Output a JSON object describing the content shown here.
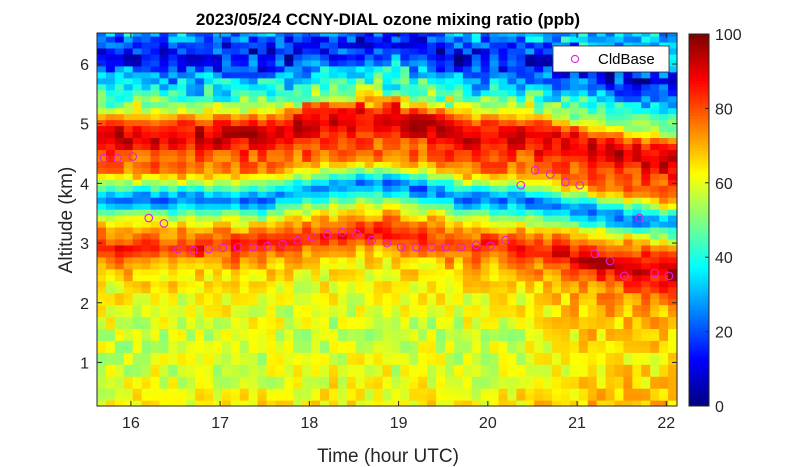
{
  "chart_data": {
    "type": "heatmap",
    "title": "2023/05/24 CCNY-DIAL ozone mixing ratio (ppb)",
    "xlabel": "Time (hour UTC)",
    "ylabel": "Altitude (km)",
    "xlim": [
      15.62,
      22.12
    ],
    "ylim": [
      0.27,
      6.52
    ],
    "xticks": [
      16,
      17,
      18,
      19,
      20,
      21,
      22
    ],
    "yticks": [
      1,
      2,
      3,
      4,
      5,
      6
    ],
    "colormap": "jet",
    "clim": [
      0,
      100
    ],
    "colorbar_ticks": [
      0,
      20,
      40,
      60,
      80,
      100
    ],
    "colors": {
      "marker": "#e020e0",
      "frame": "#262626"
    },
    "legend": {
      "label": "CldBase",
      "marker": "open-circle",
      "location": "top-right"
    },
    "ozone_profile": {
      "note_unused": "",
      "alt": [
        0.3,
        0.6,
        1.0,
        1.4,
        1.8,
        2.2,
        2.5,
        2.75,
        2.9,
        3.05,
        3.25,
        3.45,
        3.6,
        3.75,
        3.9,
        4.05,
        4.2,
        4.35,
        4.5,
        4.65,
        4.8,
        4.95,
        5.1,
        5.25,
        5.45,
        5.65,
        5.8,
        5.95,
        6.1,
        6.3,
        6.5
      ],
      "ozone": [
        63,
        60,
        58,
        57,
        60,
        62,
        67,
        75,
        85,
        80,
        70,
        52,
        35,
        22,
        40,
        62,
        75,
        78,
        80,
        88,
        92,
        88,
        75,
        55,
        45,
        35,
        28,
        18,
        12,
        18,
        30
      ]
    },
    "cloud_base": {
      "name": "CldBase",
      "x": [
        15.7,
        15.85,
        16.02,
        16.2,
        16.37,
        16.53,
        16.7,
        16.87,
        17.03,
        17.2,
        17.37,
        17.53,
        17.7,
        17.87,
        18.03,
        18.2,
        18.37,
        18.53,
        18.7,
        18.87,
        19.03,
        19.2,
        19.37,
        19.53,
        19.7,
        19.87,
        20.03,
        20.2,
        20.37,
        20.53,
        20.7,
        20.87,
        21.03,
        21.2,
        21.37,
        21.53,
        21.7,
        21.87,
        22.03
      ],
      "y": [
        4.42,
        4.42,
        4.45,
        3.42,
        3.33,
        2.9,
        2.88,
        2.9,
        2.92,
        2.93,
        2.93,
        2.95,
        2.98,
        3.05,
        3.1,
        3.15,
        3.18,
        3.15,
        3.05,
        3.0,
        2.93,
        2.93,
        2.93,
        2.93,
        2.93,
        2.97,
        2.95,
        3.05,
        3.97,
        4.22,
        4.15,
        4.02,
        3.97,
        2.82,
        2.7,
        2.45,
        3.42,
        2.5,
        2.45
      ]
    }
  }
}
